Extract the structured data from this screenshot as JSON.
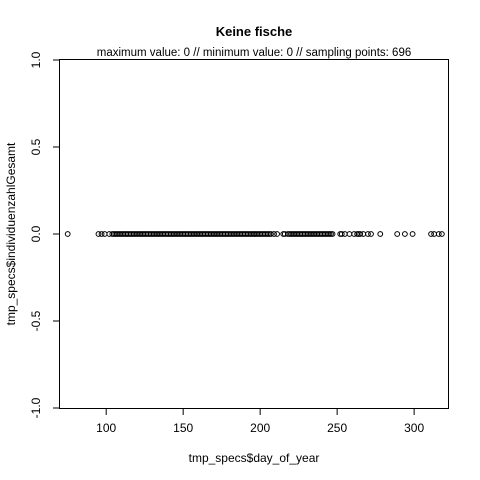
{
  "chart_data": {
    "type": "scatter",
    "title": "Keine fische",
    "subtitle": "maximum value: 0  //  minimum value: 0  // sampling points: 696",
    "xlabel": "tmp_specs$day_of_year",
    "ylabel": "tmp_specs$individuenzahlGesamt",
    "xlim": [
      70,
      322
    ],
    "ylim": [
      -1.0,
      1.0
    ],
    "xticks": [
      100,
      150,
      200,
      250,
      300
    ],
    "xtick_labels": [
      "100",
      "150",
      "200",
      "250",
      "300"
    ],
    "yticks": [
      -1.0,
      -0.5,
      0.0,
      0.5,
      1.0
    ],
    "ytick_labels": [
      "-1.0",
      "-0.5",
      "0.0",
      "0.5",
      "1.0"
    ],
    "grid": false,
    "x": [
      75,
      95,
      97,
      99,
      102,
      104,
      105,
      106,
      107,
      108,
      109,
      110,
      111,
      112,
      113,
      114,
      115,
      116,
      117,
      118,
      119,
      120,
      121,
      122,
      123,
      124,
      125,
      126,
      127,
      128,
      129,
      130,
      131,
      132,
      133,
      134,
      135,
      136,
      137,
      138,
      139,
      140,
      141,
      142,
      143,
      144,
      145,
      146,
      147,
      148,
      149,
      150,
      151,
      152,
      153,
      154,
      155,
      156,
      157,
      158,
      159,
      160,
      161,
      162,
      163,
      164,
      165,
      166,
      167,
      168,
      169,
      170,
      171,
      172,
      173,
      174,
      175,
      176,
      177,
      178,
      179,
      180,
      181,
      182,
      183,
      184,
      185,
      186,
      187,
      188,
      189,
      190,
      191,
      192,
      193,
      194,
      195,
      196,
      197,
      198,
      199,
      200,
      201,
      202,
      203,
      204,
      205,
      206,
      207,
      209,
      211,
      215,
      216,
      218,
      219,
      220,
      221,
      222,
      223,
      224,
      225,
      226,
      227,
      228,
      229,
      230,
      231,
      232,
      233,
      234,
      235,
      236,
      237,
      238,
      239,
      240,
      241,
      242,
      243,
      244,
      245,
      246,
      247,
      252,
      253,
      255,
      258,
      261,
      263,
      264,
      265,
      267,
      270,
      272,
      278,
      289,
      294,
      299,
      311,
      313,
      316,
      318
    ],
    "y": [
      0,
      0,
      0,
      0,
      0,
      0,
      0,
      0,
      0,
      0,
      0,
      0,
      0,
      0,
      0,
      0,
      0,
      0,
      0,
      0,
      0,
      0,
      0,
      0,
      0,
      0,
      0,
      0,
      0,
      0,
      0,
      0,
      0,
      0,
      0,
      0,
      0,
      0,
      0,
      0,
      0,
      0,
      0,
      0,
      0,
      0,
      0,
      0,
      0,
      0,
      0,
      0,
      0,
      0,
      0,
      0,
      0,
      0,
      0,
      0,
      0,
      0,
      0,
      0,
      0,
      0,
      0,
      0,
      0,
      0,
      0,
      0,
      0,
      0,
      0,
      0,
      0,
      0,
      0,
      0,
      0,
      0,
      0,
      0,
      0,
      0,
      0,
      0,
      0,
      0,
      0,
      0,
      0,
      0,
      0,
      0,
      0,
      0,
      0,
      0,
      0,
      0,
      0,
      0,
      0,
      0,
      0,
      0,
      0,
      0,
      0,
      0,
      0,
      0,
      0,
      0,
      0,
      0,
      0,
      0,
      0,
      0,
      0,
      0,
      0,
      0,
      0,
      0,
      0,
      0,
      0,
      0,
      0,
      0,
      0,
      0,
      0,
      0,
      0,
      0,
      0,
      0,
      0,
      0,
      0,
      0,
      0,
      0,
      0,
      0,
      0,
      0,
      0,
      0,
      0,
      0,
      0,
      0,
      0,
      0,
      0,
      0
    ]
  }
}
